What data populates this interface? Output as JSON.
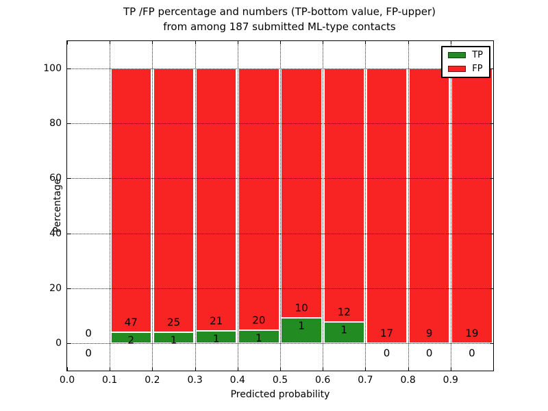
{
  "title": {
    "line1": "TP /FP percentage and numbers (TP-bottom value, FP-upper)",
    "line2": "from among 187 submitted ML-type contacts"
  },
  "y_axis": {
    "label": "Percentage",
    "ticks": [
      0,
      20,
      40,
      60,
      80,
      100
    ]
  },
  "x_axis": {
    "label": "Predicted probability",
    "tick_labels": [
      "0.0",
      "0.1",
      "0.2",
      "0.3",
      "0.4",
      "0.5",
      "0.6",
      "0.7",
      "0.8",
      "0.9"
    ],
    "tick_values": [
      0.0,
      0.1,
      0.2,
      0.3,
      0.4,
      0.5,
      0.6,
      0.7,
      0.8,
      0.9
    ]
  },
  "legend": {
    "items": [
      {
        "label": "TP",
        "color": "#228b22"
      },
      {
        "label": "FP",
        "color": "#f82323"
      }
    ]
  },
  "chart_data": {
    "type": "bar",
    "stacked": true,
    "title": "TP /FP percentage and numbers (TP-bottom value, FP-upper) from among 187 submitted ML-type contacts",
    "xlabel": "Predicted probability",
    "ylabel": "Percentage",
    "xlim": [
      0.0,
      1.0
    ],
    "ylim": [
      -10,
      110
    ],
    "grid": true,
    "grid_style": "dotted",
    "legend_position": "upper right",
    "bin_width": 0.1,
    "series": [
      {
        "name": "TP",
        "color": "#228b22"
      },
      {
        "name": "FP",
        "color": "#f82323"
      }
    ],
    "bins": [
      {
        "range": [
          0.0,
          0.1
        ],
        "tp": 0,
        "fp": 0,
        "tp_pct": 0,
        "fp_pct": 0
      },
      {
        "range": [
          0.1,
          0.2
        ],
        "tp": 2,
        "fp": 47,
        "tp_pct": 4.08,
        "fp_pct": 95.92
      },
      {
        "range": [
          0.2,
          0.3
        ],
        "tp": 1,
        "fp": 25,
        "tp_pct": 3.85,
        "fp_pct": 96.15
      },
      {
        "range": [
          0.3,
          0.4
        ],
        "tp": 1,
        "fp": 21,
        "tp_pct": 4.55,
        "fp_pct": 95.45
      },
      {
        "range": [
          0.4,
          0.5
        ],
        "tp": 1,
        "fp": 20,
        "tp_pct": 4.76,
        "fp_pct": 95.24
      },
      {
        "range": [
          0.5,
          0.6
        ],
        "tp": 1,
        "fp": 10,
        "tp_pct": 9.09,
        "fp_pct": 90.91
      },
      {
        "range": [
          0.6,
          0.7
        ],
        "tp": 1,
        "fp": 12,
        "tp_pct": 7.69,
        "fp_pct": 92.31
      },
      {
        "range": [
          0.7,
          0.8
        ],
        "tp": 0,
        "fp": 17,
        "tp_pct": 0,
        "fp_pct": 100
      },
      {
        "range": [
          0.8,
          0.9
        ],
        "tp": 0,
        "fp": 9,
        "tp_pct": 0,
        "fp_pct": 100
      },
      {
        "range": [
          0.9,
          1.0
        ],
        "tp": 0,
        "fp": 19,
        "tp_pct": 0,
        "fp_pct": 100
      }
    ]
  }
}
